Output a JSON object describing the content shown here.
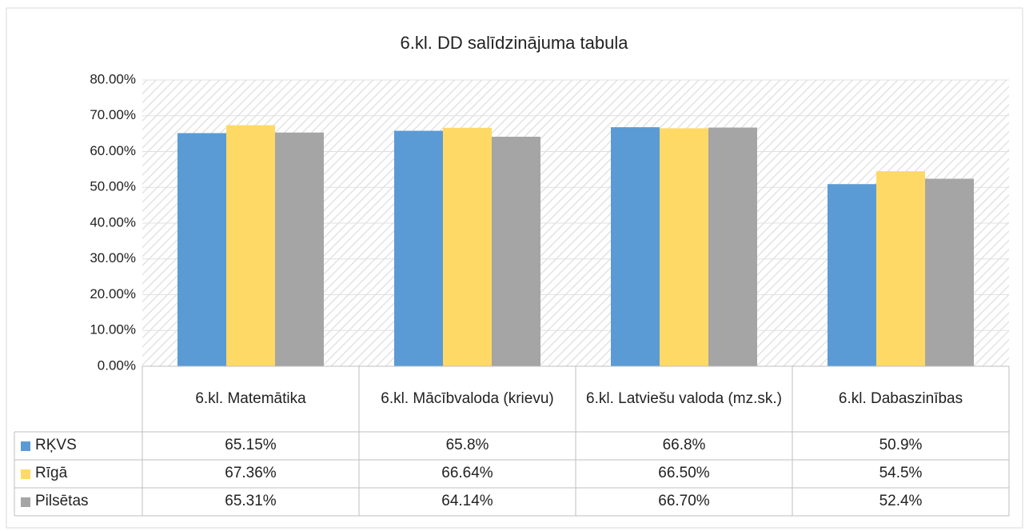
{
  "chart_data": {
    "type": "bar",
    "title": "6.kl. DD salīdzinājuma tabula",
    "categories": [
      "6.kl. Matemātika",
      "6.kl. Mācībvaloda (krievu)",
      "6.kl. Latviešu valoda (mz.sk.)",
      "6.kl. Dabaszinības"
    ],
    "series": [
      {
        "name": "RĶVS",
        "color": "#5b9bd5",
        "values": [
          65.15,
          65.8,
          66.8,
          50.9
        ],
        "value_labels": [
          "65.15%",
          "65.8%",
          "66.8%",
          "50.9%"
        ]
      },
      {
        "name": "Rīgā",
        "color": "#ffd966",
        "values": [
          67.36,
          66.64,
          66.5,
          54.5
        ],
        "value_labels": [
          "67.36%",
          "66.64%",
          "66.50%",
          "54.5%"
        ]
      },
      {
        "name": "Pilsētas",
        "color": "#a5a5a5",
        "values": [
          65.31,
          64.14,
          66.7,
          52.4
        ],
        "value_labels": [
          "65.31%",
          "64.14%",
          "66.70%",
          "52.4%"
        ]
      }
    ],
    "ylim": [
      0,
      80
    ],
    "yticks": [
      {
        "value": 0,
        "label": "0.00%"
      },
      {
        "value": 10,
        "label": "10.00%"
      },
      {
        "value": 20,
        "label": "20.00%"
      },
      {
        "value": 30,
        "label": "30.00%"
      },
      {
        "value": 40,
        "label": "40.00%"
      },
      {
        "value": 50,
        "label": "50.00%"
      },
      {
        "value": 60,
        "label": "60.00%"
      },
      {
        "value": 70,
        "label": "70.00%"
      },
      {
        "value": 80,
        "label": "80.00%"
      }
    ],
    "grid": true
  }
}
